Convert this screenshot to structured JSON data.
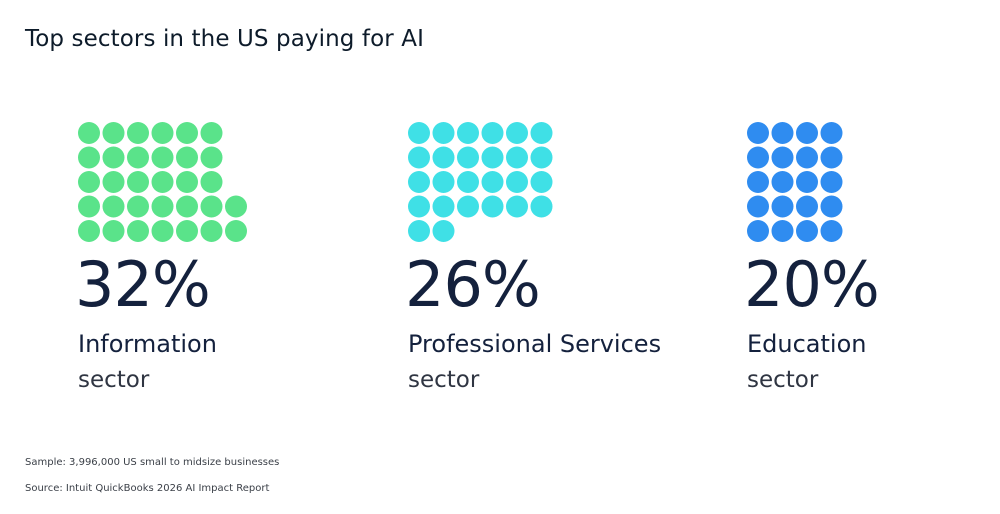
{
  "title": "Top sectors in the US paying for AI",
  "chart_data": {
    "type": "waffle",
    "title": "Top sectors in the US paying for AI",
    "categories": [
      "Information",
      "Professional Services",
      "Education"
    ],
    "values": [
      32,
      26,
      20
    ],
    "unit": "%",
    "items": [
      {
        "percent_label": "32%",
        "name": "Information",
        "suffix": "sector",
        "dot_count": 32,
        "dot_columns": 6,
        "color": "#5ae38a"
      },
      {
        "percent_label": "26%",
        "name": "Professional Services",
        "suffix": "sector",
        "dot_count": 26,
        "dot_columns": 6,
        "color": "#3fe0e6"
      },
      {
        "percent_label": "20%",
        "name": "Education",
        "suffix": "sector",
        "dot_count": 20,
        "dot_columns": 4,
        "color": "#2f8cf0"
      }
    ]
  },
  "footnotes": {
    "sample": "Sample: 3,996,000 US small to midsize businesses",
    "source": "Source: Intuit QuickBooks 2026 AI Impact Report"
  }
}
